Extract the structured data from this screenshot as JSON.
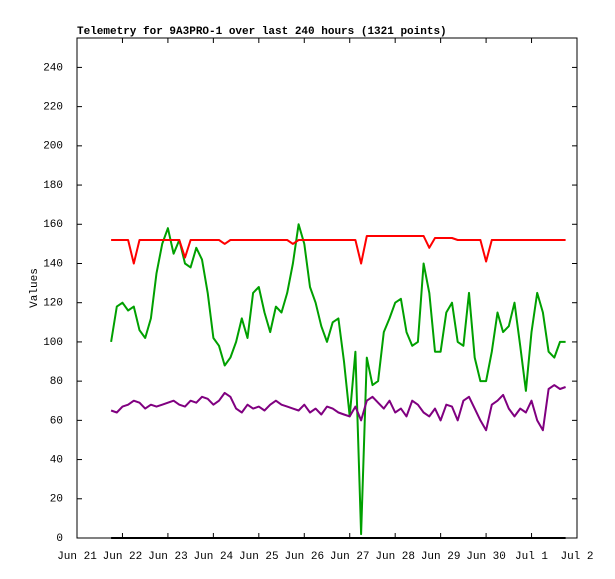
{
  "chart_data": {
    "type": "line",
    "title": "Telemetry for 9A3PRO-1 over last 240 hours (1321 points)",
    "y_label": "Values",
    "xlim": [
      0,
      11
    ],
    "xticks": [
      {
        "value": 0,
        "label": "Jun 21"
      },
      {
        "value": 1,
        "label": "Jun 22"
      },
      {
        "value": 2,
        "label": "Jun 23"
      },
      {
        "value": 3,
        "label": "Jun 24"
      },
      {
        "value": 4,
        "label": "Jun 25"
      },
      {
        "value": 5,
        "label": "Jun 26"
      },
      {
        "value": 6,
        "label": "Jun 27"
      },
      {
        "value": 7,
        "label": "Jun 28"
      },
      {
        "value": 8,
        "label": "Jun 29"
      },
      {
        "value": 9,
        "label": "Jun 30"
      },
      {
        "value": 10,
        "label": "Jul 1"
      },
      {
        "value": 11,
        "label": "Jul 2"
      }
    ],
    "ylim": [
      0,
      255
    ],
    "yticks": [
      0,
      20,
      40,
      60,
      80,
      100,
      120,
      140,
      160,
      180,
      200,
      220,
      240
    ],
    "x": [
      0.75,
      0.875,
      1,
      1.125,
      1.25,
      1.375,
      1.5,
      1.625,
      1.75,
      1.875,
      2,
      2.125,
      2.25,
      2.375,
      2.5,
      2.625,
      2.75,
      2.875,
      3,
      3.125,
      3.25,
      3.375,
      3.5,
      3.625,
      3.75,
      3.875,
      4,
      4.125,
      4.25,
      4.375,
      4.5,
      4.625,
      4.75,
      4.875,
      5,
      5.125,
      5.25,
      5.375,
      5.5,
      5.625,
      5.75,
      5.875,
      6,
      6.125,
      6.25,
      6.375,
      6.5,
      6.625,
      6.75,
      6.875,
      7,
      7.125,
      7.25,
      7.375,
      7.5,
      7.625,
      7.75,
      7.875,
      8,
      8.125,
      8.25,
      8.375,
      8.5,
      8.625,
      8.75,
      8.875,
      9,
      9.125,
      9.25,
      9.375,
      9.5,
      9.625,
      9.75,
      9.875,
      10,
      10.125,
      10.25,
      10.375,
      10.5,
      10.625,
      10.75
    ],
    "series": [
      {
        "color": "#000000",
        "values": [
          0,
          0,
          0,
          0,
          0,
          0,
          0,
          0,
          0,
          0,
          0,
          0,
          0,
          0,
          0,
          0,
          0,
          0,
          0,
          0,
          0,
          0,
          0,
          0,
          0,
          0,
          0,
          0,
          0,
          0,
          0,
          0,
          0,
          0,
          0,
          0,
          0,
          0,
          0,
          0,
          0,
          0,
          0,
          0,
          0,
          0,
          0,
          0,
          0,
          0,
          0,
          0,
          0,
          0,
          0,
          0,
          0,
          0,
          0,
          0,
          0,
          0,
          0,
          0,
          0,
          0,
          0,
          0,
          0,
          0,
          0,
          0,
          0,
          0,
          0,
          0,
          0,
          0,
          0,
          0,
          0
        ]
      },
      {
        "color": "#00a000",
        "values": [
          100,
          118,
          120,
          116,
          118,
          106,
          102,
          112,
          135,
          150,
          158,
          145,
          152,
          140,
          138,
          148,
          142,
          125,
          102,
          98,
          88,
          92,
          100,
          112,
          102,
          125,
          128,
          115,
          105,
          118,
          115,
          125,
          140,
          160,
          150,
          128,
          120,
          108,
          100,
          110,
          112,
          90,
          62,
          95,
          2,
          92,
          78,
          80,
          105,
          112,
          120,
          122,
          105,
          98,
          100,
          140,
          125,
          95,
          95,
          115,
          120,
          100,
          98,
          125,
          92,
          80,
          80,
          95,
          115,
          105,
          108,
          120,
          98,
          75,
          105,
          125,
          115,
          95,
          92,
          100,
          100
        ]
      },
      {
        "color": "#ff0000",
        "values": [
          152,
          152,
          152,
          152,
          140,
          152,
          152,
          152,
          152,
          152,
          152,
          152,
          152,
          143,
          152,
          152,
          152,
          152,
          152,
          152,
          150,
          152,
          152,
          152,
          152,
          152,
          152,
          152,
          152,
          152,
          152,
          152,
          150,
          152,
          152,
          152,
          152,
          152,
          152,
          152,
          152,
          152,
          152,
          152,
          140,
          154,
          154,
          154,
          154,
          154,
          154,
          154,
          154,
          154,
          154,
          154,
          148,
          153,
          153,
          153,
          153,
          152,
          152,
          152,
          152,
          152,
          141,
          152,
          152,
          152,
          152,
          152,
          152,
          152,
          152,
          152,
          152,
          152,
          152,
          152,
          152
        ]
      },
      {
        "color": "#800080",
        "values": [
          65,
          64,
          67,
          68,
          70,
          69,
          66,
          68,
          67,
          68,
          69,
          70,
          68,
          67,
          70,
          69,
          72,
          71,
          68,
          70,
          74,
          72,
          66,
          64,
          68,
          66,
          67,
          65,
          68,
          70,
          68,
          67,
          66,
          65,
          68,
          64,
          66,
          63,
          67,
          66,
          64,
          63,
          62,
          67,
          60,
          70,
          72,
          69,
          66,
          70,
          64,
          66,
          62,
          70,
          68,
          64,
          62,
          66,
          60,
          68,
          67,
          60,
          70,
          72,
          66,
          60,
          55,
          68,
          70,
          73,
          66,
          62,
          66,
          64,
          70,
          60,
          55,
          76,
          78,
          76,
          77
        ]
      }
    ]
  }
}
